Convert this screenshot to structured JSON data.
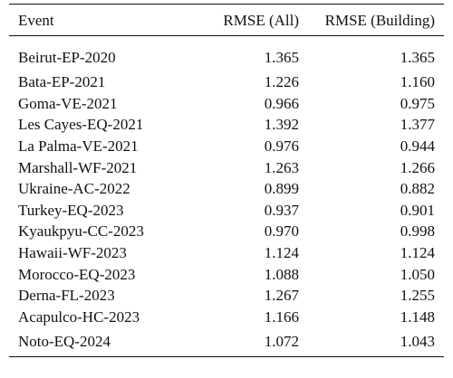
{
  "table": {
    "headers": [
      "Event",
      "RMSE (All)",
      "RMSE (Building)"
    ],
    "rows": [
      [
        "Beirut-EP-2020",
        "1.365",
        "1.365"
      ],
      [
        "Bata-EP-2021",
        "1.226",
        "1.160"
      ],
      [
        "Goma-VE-2021",
        "0.966",
        "0.975"
      ],
      [
        "Les Cayes-EQ-2021",
        "1.392",
        "1.377"
      ],
      [
        "La Palma-VE-2021",
        "0.976",
        "0.944"
      ],
      [
        "Marshall-WF-2021",
        "1.263",
        "1.266"
      ],
      [
        "Ukraine-AC-2022",
        "0.899",
        "0.882"
      ],
      [
        "Turkey-EQ-2023",
        "0.937",
        "0.901"
      ],
      [
        "Kyaukpyu-CC-2023",
        "0.970",
        "0.998"
      ],
      [
        "Hawaii-WF-2023",
        "1.124",
        "1.124"
      ],
      [
        "Morocco-EQ-2023",
        "1.088",
        "1.050"
      ],
      [
        "Derna-FL-2023",
        "1.267",
        "1.255"
      ],
      [
        "Acapulco-HC-2023",
        "1.166",
        "1.148"
      ],
      [
        "Noto-EQ-2024",
        "1.072",
        "1.043"
      ]
    ]
  }
}
